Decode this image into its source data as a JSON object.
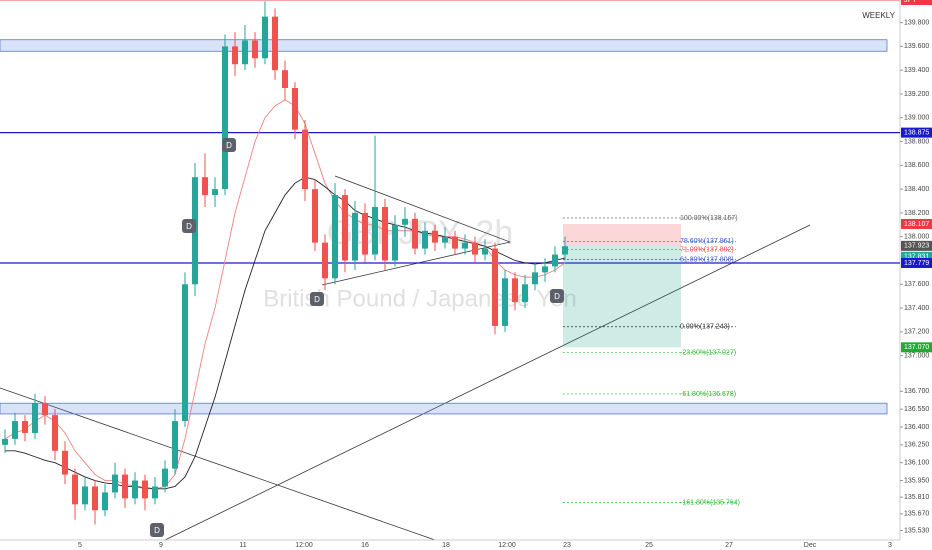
{
  "chart_data": {
    "type": "candlestick",
    "timeframe_badge": "WEEKLY",
    "symbol_tag": "JPY",
    "watermark": "GBPJPY, 2h",
    "watermark_sub": "British Pound / Japanese Yen",
    "ylim": [
      135.45,
      139.99
    ],
    "yticks": [
      {
        "value": 139.8,
        "label": "139.800"
      },
      {
        "value": 139.6,
        "label": "139.600"
      },
      {
        "value": 139.4,
        "label": "139.400"
      },
      {
        "value": 139.2,
        "label": "139.200"
      },
      {
        "value": 139,
        "label": "139.000"
      },
      {
        "value": 138.8,
        "label": "138.800"
      },
      {
        "value": 138.6,
        "label": "138.600"
      },
      {
        "value": 138.4,
        "label": "138.400"
      },
      {
        "value": 138.2,
        "label": "138.200"
      },
      {
        "value": 138,
        "label": "138.000"
      },
      {
        "value": 137.6,
        "label": "137.600"
      },
      {
        "value": 137.4,
        "label": "137.400"
      },
      {
        "value": 137.2,
        "label": "137.200"
      },
      {
        "value": 137,
        "label": "137.000"
      },
      {
        "value": 136.7,
        "label": "136.700"
      },
      {
        "value": 136.55,
        "label": "136.550"
      },
      {
        "value": 136.4,
        "label": "136.400"
      },
      {
        "value": 136.25,
        "label": "136.250"
      },
      {
        "value": 136.1,
        "label": "136.100"
      },
      {
        "value": 135.95,
        "label": "135.950"
      },
      {
        "value": 135.81,
        "label": "135.810"
      },
      {
        "value": 135.67,
        "label": "135.670"
      },
      {
        "value": 135.53,
        "label": "135.530"
      }
    ],
    "x_labels": [
      "5",
      "9",
      "11",
      "12:00",
      "16",
      "18",
      "12:00",
      "23",
      "25",
      "27",
      "Dec",
      "3"
    ],
    "up_color": "#26a69a",
    "down_color": "#ef5350",
    "candles": [
      [
        136.25,
        136.38,
        136.18,
        136.3
      ],
      [
        136.3,
        136.52,
        136.25,
        136.45
      ],
      [
        136.45,
        136.5,
        136.28,
        136.35
      ],
      [
        136.35,
        136.68,
        136.3,
        136.6
      ],
      [
        136.6,
        136.66,
        136.42,
        136.5
      ],
      [
        136.5,
        136.55,
        136.12,
        136.2
      ],
      [
        136.2,
        136.28,
        135.92,
        136.0
      ],
      [
        136.0,
        136.05,
        135.62,
        135.75
      ],
      [
        135.75,
        135.98,
        135.7,
        135.9
      ],
      [
        135.9,
        135.95,
        135.58,
        135.7
      ],
      [
        135.7,
        135.92,
        135.65,
        135.85
      ],
      [
        135.85,
        136.1,
        135.8,
        136.0
      ],
      [
        136.0,
        136.05,
        135.72,
        135.8
      ],
      [
        135.8,
        136.02,
        135.75,
        135.95
      ],
      [
        135.95,
        136.0,
        135.7,
        135.8
      ],
      [
        135.8,
        135.98,
        135.75,
        135.9
      ],
      [
        135.9,
        136.12,
        135.85,
        136.05
      ],
      [
        136.05,
        136.55,
        136.0,
        136.45
      ],
      [
        136.45,
        137.7,
        136.4,
        137.6
      ],
      [
        137.6,
        138.62,
        137.5,
        138.5
      ],
      [
        138.5,
        138.7,
        138.25,
        138.35
      ],
      [
        138.35,
        138.5,
        138.25,
        138.4
      ],
      [
        138.4,
        139.7,
        138.35,
        139.6
      ],
      [
        139.6,
        139.72,
        139.35,
        139.45
      ],
      [
        139.45,
        139.78,
        139.4,
        139.65
      ],
      [
        139.65,
        139.72,
        139.42,
        139.5
      ],
      [
        139.5,
        139.98,
        139.45,
        139.85
      ],
      [
        139.85,
        139.92,
        139.32,
        139.4
      ],
      [
        139.4,
        139.48,
        139.15,
        139.25
      ],
      [
        139.25,
        139.3,
        138.82,
        138.9
      ],
      [
        138.9,
        138.98,
        138.3,
        138.4
      ],
      [
        138.4,
        138.48,
        137.88,
        137.95
      ],
      [
        137.95,
        138.02,
        137.55,
        137.65
      ],
      [
        137.65,
        138.45,
        137.6,
        138.35
      ],
      [
        138.35,
        138.4,
        137.7,
        137.8
      ],
      [
        137.8,
        138.3,
        137.72,
        138.2
      ],
      [
        138.2,
        138.28,
        137.78,
        137.85
      ],
      [
        137.85,
        138.85,
        137.8,
        138.25
      ],
      [
        138.25,
        138.32,
        137.72,
        137.8
      ],
      [
        137.8,
        138.18,
        137.75,
        138.1
      ],
      [
        138.1,
        138.25,
        138.0,
        138.15
      ],
      [
        138.15,
        138.2,
        137.85,
        137.9
      ],
      [
        137.9,
        138.12,
        137.85,
        138.05
      ],
      [
        138.05,
        138.1,
        137.88,
        137.95
      ],
      [
        137.95,
        138.08,
        137.9,
        138.0
      ],
      [
        138.0,
        138.05,
        137.85,
        137.9
      ],
      [
        137.9,
        138.02,
        137.85,
        137.95
      ],
      [
        137.95,
        138.0,
        137.78,
        137.85
      ],
      [
        137.85,
        137.98,
        137.8,
        137.9
      ],
      [
        137.9,
        137.95,
        137.18,
        137.25
      ],
      [
        137.25,
        137.72,
        137.2,
        137.65
      ],
      [
        137.65,
        137.7,
        137.38,
        137.45
      ],
      [
        137.45,
        137.68,
        137.4,
        137.6
      ],
      [
        137.6,
        137.78,
        137.55,
        137.7
      ],
      [
        137.7,
        137.82,
        137.62,
        137.75
      ],
      [
        137.75,
        137.92,
        137.7,
        137.85
      ],
      [
        137.85,
        138.0,
        137.8,
        137.92
      ]
    ],
    "moving_averages": [
      {
        "color": "#f08080",
        "values": [
          136.3,
          136.35,
          136.38,
          136.45,
          136.5,
          136.45,
          136.35,
          136.2,
          136.1,
          136.0,
          135.95,
          135.95,
          135.92,
          135.9,
          135.88,
          135.88,
          135.9,
          136.0,
          136.3,
          136.7,
          137.1,
          137.4,
          137.8,
          138.2,
          138.5,
          138.8,
          139.0,
          139.1,
          139.15,
          139.1,
          138.95,
          138.7,
          138.45,
          138.3,
          138.2,
          138.15,
          138.1,
          138.1,
          138.05,
          138.05,
          138.05,
          138.05,
          138.02,
          138.0,
          138.0,
          138.0,
          137.98,
          137.95,
          137.92,
          137.8,
          137.72,
          137.68,
          137.66,
          137.66,
          137.68,
          137.72,
          137.78
        ]
      },
      {
        "color": "#222222",
        "values": [
          136.2,
          136.2,
          136.18,
          136.15,
          136.12,
          136.1,
          136.06,
          136.02,
          135.98,
          135.95,
          135.93,
          135.92,
          135.9,
          135.9,
          135.89,
          135.88,
          135.88,
          135.9,
          135.98,
          136.15,
          136.4,
          136.65,
          136.95,
          137.25,
          137.55,
          137.8,
          138.05,
          138.2,
          138.35,
          138.45,
          138.5,
          138.48,
          138.42,
          138.35,
          138.3,
          138.22,
          138.18,
          138.15,
          138.12,
          138.1,
          138.08,
          138.05,
          138.03,
          138.02,
          138.0,
          137.98,
          137.96,
          137.94,
          137.92,
          137.88,
          137.84,
          137.8,
          137.78,
          137.77,
          137.78,
          137.8,
          137.82
        ]
      }
    ],
    "levels": [
      {
        "value": 138.875,
        "color": "#1a1acc"
      },
      {
        "value": 137.779,
        "color": "#1a1acc"
      },
      {
        "value": 139.99,
        "color": "#f07070"
      }
    ],
    "zones": [
      [
        139.656,
        139.559
      ],
      [
        136.6,
        136.51
      ]
    ],
    "price_tags": [
      {
        "value": 139.99,
        "label": "JPY",
        "color": "#f23645"
      },
      {
        "value": 138.875,
        "label": "138.875",
        "color": "#1a1acc"
      },
      {
        "value": 138.107,
        "label": "138.107",
        "color": "#f23645"
      },
      {
        "value": 137.923,
        "label": "137.923",
        "color": "#555555"
      },
      {
        "value": 137.831,
        "label": "137.831",
        "color": "#26a69a"
      },
      {
        "value": 137.779,
        "label": "137.779",
        "color": "#1a1acc"
      },
      {
        "value": 137.07,
        "label": "137.070",
        "color": "#22aa33"
      }
    ],
    "position": {
      "stop": 138.107,
      "entry": 137.923,
      "target": 137.07
    },
    "fib_levels": [
      {
        "value": 138.157,
        "label": "100.00%(138.157)",
        "color": "#666666"
      },
      {
        "value": 137.961,
        "label": "78.60%(137.961)",
        "color": "#3355cc"
      },
      {
        "value": 137.892,
        "label": "71.00%(137.892)",
        "color": "#ee4444"
      },
      {
        "value": 137.808,
        "label": "61.80%(137.808)",
        "color": "#3355cc"
      },
      {
        "value": 137.243,
        "label": "0.00%(137.243)",
        "color": "#333333"
      },
      {
        "value": 137.027,
        "label": "-23.60%(137.027)",
        "color": "#33bb33"
      },
      {
        "value": 136.678,
        "label": "-61.80%(136.678)",
        "color": "#33bb33"
      },
      {
        "value": 135.764,
        "label": "-161.80%(135.764)",
        "color": "#33bb33"
      }
    ],
    "markers": [
      "D",
      "D",
      "D",
      "D",
      "D"
    ]
  }
}
